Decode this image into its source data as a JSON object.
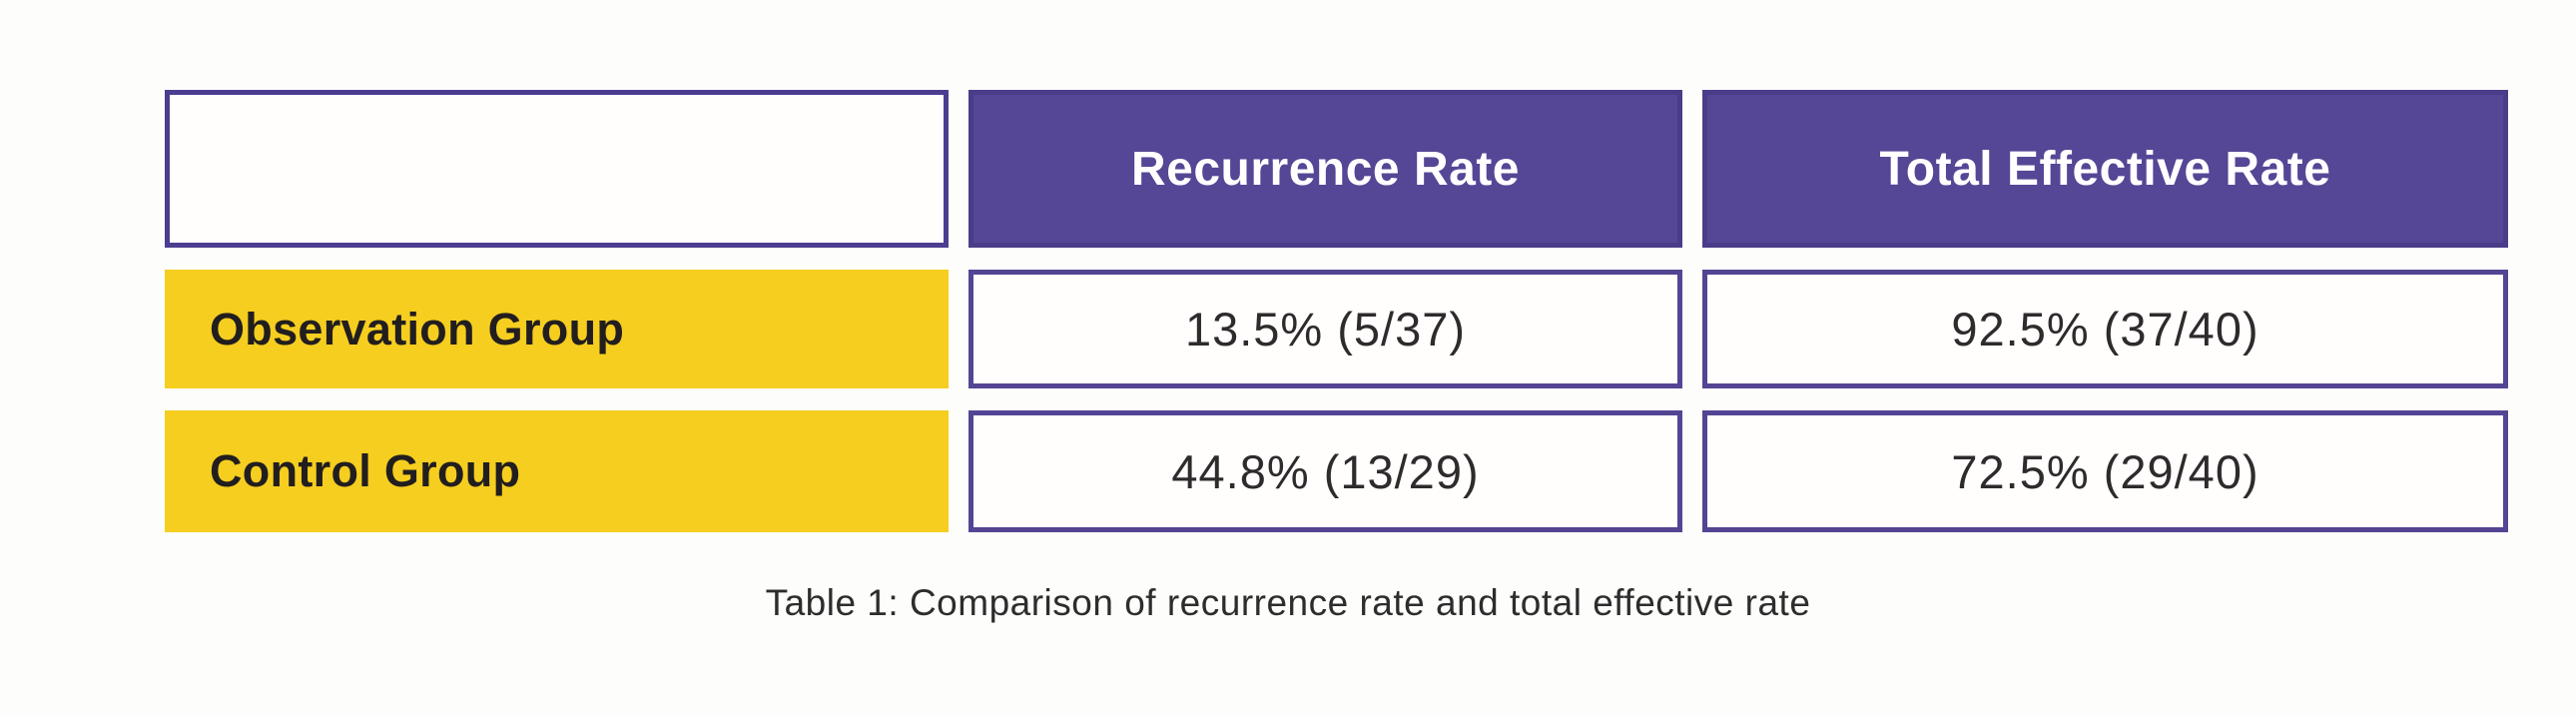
{
  "figure": {
    "caption": "Table 1: Comparison of recurrence rate and total effective rate"
  },
  "table": {
    "columns": [
      {
        "label": ""
      },
      {
        "label": "Recurrence Rate"
      },
      {
        "label": "Total Effective Rate"
      }
    ],
    "rows": [
      {
        "label": "Observation Group",
        "values": [
          "13.5% (5/37)",
          "92.5% (37/40)"
        ]
      },
      {
        "label": "Control Group",
        "values": [
          "44.8% (13/29)",
          "72.5% (29/40)"
        ]
      }
    ]
  },
  "colors": {
    "header_bg": "#564696",
    "header_text": "#ffffff",
    "row_label_bg": "#f5ce1f",
    "row_label_text": "#221e1f",
    "cell_border": "#544494",
    "data_text": "#2e2b2c",
    "background": "#fdfdfb"
  },
  "chart_data": {
    "type": "table",
    "title": "Table 1: Comparison of recurrence rate and total effective rate",
    "columns": [
      "",
      "Recurrence Rate",
      "Total Effective Rate"
    ],
    "rows": [
      [
        "Observation Group",
        "13.5% (5/37)",
        "92.5% (37/40)"
      ],
      [
        "Control Group",
        "44.8% (13/29)",
        "72.5% (29/40)"
      ]
    ],
    "values": {
      "observation_group": {
        "recurrence_rate_pct": 13.5,
        "recurrence_fraction": "5/37",
        "total_effective_pct": 92.5,
        "total_effective_fraction": "37/40"
      },
      "control_group": {
        "recurrence_rate_pct": 44.8,
        "recurrence_fraction": "13/29",
        "total_effective_pct": 72.5,
        "total_effective_fraction": "29/40"
      }
    },
    "layout_hints": {
      "header_fill": "purple",
      "row_label_fill": "yellow",
      "data_cells": "white with purple border",
      "caption_position": "bottom-center"
    }
  }
}
